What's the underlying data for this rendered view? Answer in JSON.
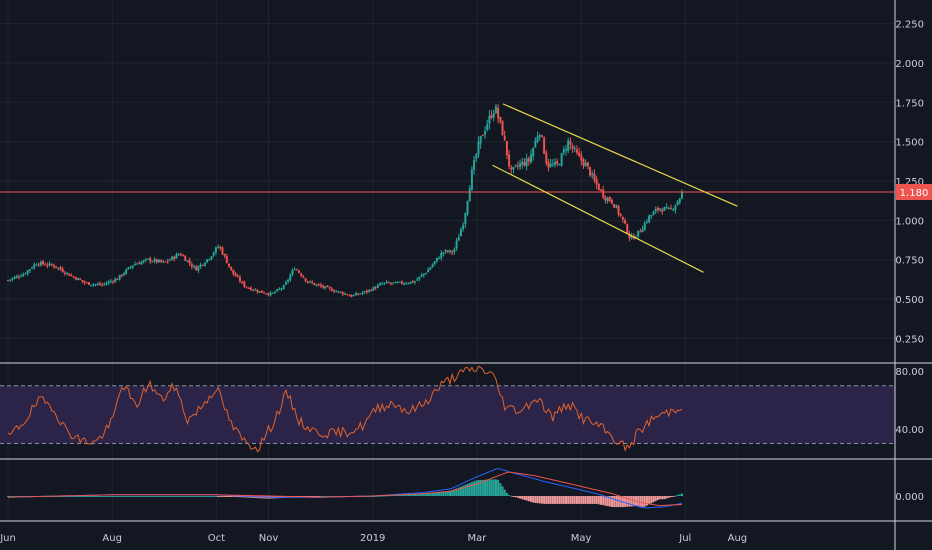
{
  "chart_data": {
    "type": "candlestick",
    "x_axis": {
      "labels": [
        "Jun",
        "Aug",
        "Oct",
        "Nov",
        "2019",
        "Mar",
        "May",
        "Jul",
        "Aug"
      ],
      "months": [
        0,
        2,
        4,
        5,
        7,
        9,
        11,
        13,
        14
      ]
    },
    "price_panel": {
      "y_ticks": [
        "2.250",
        "2.000",
        "1.750",
        "1.500",
        "1.250",
        "1.000",
        "0.750",
        "0.500",
        "0.250"
      ],
      "y_tick_values": [
        2.25,
        2.0,
        1.75,
        1.5,
        1.25,
        1.0,
        0.75,
        0.5,
        0.25
      ],
      "ylim": [
        0.1,
        2.4
      ],
      "last_price_label": "1.180",
      "last_price": 1.18,
      "series": [
        {
          "m": 0.0,
          "c": 0.62
        },
        {
          "m": 0.3,
          "c": 0.66
        },
        {
          "m": 0.55,
          "c": 0.73
        },
        {
          "m": 0.9,
          "c": 0.71
        },
        {
          "m": 1.2,
          "c": 0.65
        },
        {
          "m": 1.5,
          "c": 0.6
        },
        {
          "m": 1.8,
          "c": 0.59
        },
        {
          "m": 2.1,
          "c": 0.63
        },
        {
          "m": 2.4,
          "c": 0.72
        },
        {
          "m": 2.7,
          "c": 0.75
        },
        {
          "m": 3.0,
          "c": 0.73
        },
        {
          "m": 3.3,
          "c": 0.79
        },
        {
          "m": 3.6,
          "c": 0.69
        },
        {
          "m": 3.85,
          "c": 0.76
        },
        {
          "m": 4.05,
          "c": 0.84
        },
        {
          "m": 4.3,
          "c": 0.67
        },
        {
          "m": 4.55,
          "c": 0.58
        },
        {
          "m": 4.8,
          "c": 0.55
        },
        {
          "m": 5.05,
          "c": 0.53
        },
        {
          "m": 5.3,
          "c": 0.58
        },
        {
          "m": 5.5,
          "c": 0.7
        },
        {
          "m": 5.75,
          "c": 0.61
        },
        {
          "m": 6.0,
          "c": 0.58
        },
        {
          "m": 6.3,
          "c": 0.55
        },
        {
          "m": 6.6,
          "c": 0.52
        },
        {
          "m": 6.9,
          "c": 0.55
        },
        {
          "m": 7.2,
          "c": 0.6
        },
        {
          "m": 7.5,
          "c": 0.6
        },
        {
          "m": 7.8,
          "c": 0.61
        },
        {
          "m": 8.05,
          "c": 0.68
        },
        {
          "m": 8.35,
          "c": 0.8
        },
        {
          "m": 8.55,
          "c": 0.8
        },
        {
          "m": 8.75,
          "c": 1.0
        },
        {
          "m": 8.9,
          "c": 1.3
        },
        {
          "m": 9.05,
          "c": 1.5
        },
        {
          "m": 9.2,
          "c": 1.62
        },
        {
          "m": 9.35,
          "c": 1.72
        },
        {
          "m": 9.5,
          "c": 1.55
        },
        {
          "m": 9.65,
          "c": 1.3
        },
        {
          "m": 9.8,
          "c": 1.35
        },
        {
          "m": 10.0,
          "c": 1.38
        },
        {
          "m": 10.2,
          "c": 1.58
        },
        {
          "m": 10.35,
          "c": 1.35
        },
        {
          "m": 10.55,
          "c": 1.35
        },
        {
          "m": 10.75,
          "c": 1.5
        },
        {
          "m": 10.95,
          "c": 1.4
        },
        {
          "m": 11.1,
          "c": 1.35
        },
        {
          "m": 11.25,
          "c": 1.25
        },
        {
          "m": 11.45,
          "c": 1.15
        },
        {
          "m": 11.6,
          "c": 1.12
        },
        {
          "m": 11.8,
          "c": 1.0
        },
        {
          "m": 11.95,
          "c": 0.88
        },
        {
          "m": 12.1,
          "c": 0.92
        },
        {
          "m": 12.3,
          "c": 1.02
        },
        {
          "m": 12.5,
          "c": 1.08
        },
        {
          "m": 12.7,
          "c": 1.06
        },
        {
          "m": 12.85,
          "c": 1.12
        },
        {
          "m": 12.95,
          "c": 1.18
        }
      ],
      "trendlines": [
        {
          "color": "#e8d84b",
          "from": {
            "m": 9.5,
            "v": 1.74
          },
          "to": {
            "m": 14.0,
            "v": 1.09
          }
        },
        {
          "color": "#e8d84b",
          "from": {
            "m": 9.3,
            "v": 1.35
          },
          "to": {
            "m": 13.35,
            "v": 0.67
          }
        }
      ],
      "colors": {
        "up": "#26a69a",
        "down": "#ef5350",
        "level_line": "#ef5350",
        "trendline": "#e8d84b"
      }
    },
    "rsi_panel": {
      "y_ticks": [
        "80.00",
        "40.00"
      ],
      "y_tick_values": [
        80,
        40
      ],
      "ylim": [
        20,
        85
      ],
      "band": [
        30,
        70
      ],
      "series": [
        {
          "m": 0.0,
          "v": 34
        },
        {
          "m": 0.3,
          "v": 45
        },
        {
          "m": 0.6,
          "v": 60
        },
        {
          "m": 0.85,
          "v": 56
        },
        {
          "m": 1.1,
          "v": 40
        },
        {
          "m": 1.4,
          "v": 32
        },
        {
          "m": 1.7,
          "v": 31
        },
        {
          "m": 2.0,
          "v": 45
        },
        {
          "m": 2.2,
          "v": 72
        },
        {
          "m": 2.45,
          "v": 55
        },
        {
          "m": 2.7,
          "v": 72
        },
        {
          "m": 2.95,
          "v": 60
        },
        {
          "m": 3.2,
          "v": 70
        },
        {
          "m": 3.45,
          "v": 46
        },
        {
          "m": 3.7,
          "v": 55
        },
        {
          "m": 4.0,
          "v": 69
        },
        {
          "m": 4.3,
          "v": 42
        },
        {
          "m": 4.55,
          "v": 31
        },
        {
          "m": 4.8,
          "v": 27
        },
        {
          "m": 5.1,
          "v": 45
        },
        {
          "m": 5.35,
          "v": 65
        },
        {
          "m": 5.6,
          "v": 45
        },
        {
          "m": 5.9,
          "v": 38
        },
        {
          "m": 6.2,
          "v": 37
        },
        {
          "m": 6.5,
          "v": 38
        },
        {
          "m": 6.8,
          "v": 42
        },
        {
          "m": 7.1,
          "v": 55
        },
        {
          "m": 7.4,
          "v": 58
        },
        {
          "m": 7.7,
          "v": 52
        },
        {
          "m": 8.0,
          "v": 58
        },
        {
          "m": 8.3,
          "v": 70
        },
        {
          "m": 8.55,
          "v": 76
        },
        {
          "m": 8.8,
          "v": 80
        },
        {
          "m": 9.05,
          "v": 82
        },
        {
          "m": 9.3,
          "v": 78
        },
        {
          "m": 9.55,
          "v": 55
        },
        {
          "m": 9.85,
          "v": 53
        },
        {
          "m": 10.15,
          "v": 62
        },
        {
          "m": 10.45,
          "v": 48
        },
        {
          "m": 10.75,
          "v": 58
        },
        {
          "m": 11.05,
          "v": 47
        },
        {
          "m": 11.35,
          "v": 42
        },
        {
          "m": 11.65,
          "v": 33
        },
        {
          "m": 11.9,
          "v": 26
        },
        {
          "m": 12.1,
          "v": 38
        },
        {
          "m": 12.4,
          "v": 48
        },
        {
          "m": 12.7,
          "v": 52
        },
        {
          "m": 12.95,
          "v": 57
        }
      ],
      "colors": {
        "line": "#e0622c",
        "band": "#2c2448",
        "band_edge": "#8a8f9c"
      }
    },
    "macd_panel": {
      "y_ticks": [
        "0.000"
      ],
      "y_tick_values": [
        0
      ],
      "ylim": [
        -0.2,
        0.3
      ],
      "macd": [
        {
          "m": 0.0,
          "v": -0.01
        },
        {
          "m": 1.0,
          "v": 0.0
        },
        {
          "m": 2.0,
          "v": 0.01
        },
        {
          "m": 3.0,
          "v": 0.01
        },
        {
          "m": 4.0,
          "v": 0.01
        },
        {
          "m": 5.0,
          "v": -0.01
        },
        {
          "m": 6.0,
          "v": -0.01
        },
        {
          "m": 7.0,
          "v": 0.0
        },
        {
          "m": 8.0,
          "v": 0.03
        },
        {
          "m": 8.5,
          "v": 0.06
        },
        {
          "m": 9.0,
          "v": 0.16
        },
        {
          "m": 9.4,
          "v": 0.23
        },
        {
          "m": 9.8,
          "v": 0.18
        },
        {
          "m": 10.3,
          "v": 0.12
        },
        {
          "m": 10.8,
          "v": 0.07
        },
        {
          "m": 11.3,
          "v": 0.02
        },
        {
          "m": 11.8,
          "v": -0.05
        },
        {
          "m": 12.2,
          "v": -0.1
        },
        {
          "m": 12.6,
          "v": -0.09
        },
        {
          "m": 12.95,
          "v": -0.06
        }
      ],
      "signal": [
        {
          "m": 0.0,
          "v": -0.01
        },
        {
          "m": 1.0,
          "v": 0.0
        },
        {
          "m": 2.0,
          "v": 0.01
        },
        {
          "m": 3.0,
          "v": 0.01
        },
        {
          "m": 4.0,
          "v": 0.01
        },
        {
          "m": 5.0,
          "v": 0.0
        },
        {
          "m": 6.0,
          "v": -0.01
        },
        {
          "m": 7.0,
          "v": 0.0
        },
        {
          "m": 8.0,
          "v": 0.02
        },
        {
          "m": 8.5,
          "v": 0.04
        },
        {
          "m": 9.0,
          "v": 0.1
        },
        {
          "m": 9.6,
          "v": 0.2
        },
        {
          "m": 10.1,
          "v": 0.17
        },
        {
          "m": 10.6,
          "v": 0.12
        },
        {
          "m": 11.1,
          "v": 0.07
        },
        {
          "m": 11.6,
          "v": 0.02
        },
        {
          "m": 12.1,
          "v": -0.05
        },
        {
          "m": 12.5,
          "v": -0.08
        },
        {
          "m": 12.95,
          "v": -0.07
        }
      ],
      "colors": {
        "macd": "#2962ff",
        "signal": "#ef5350",
        "hist_up": "#26a69a",
        "hist_down": "#ef9a9a"
      }
    }
  }
}
